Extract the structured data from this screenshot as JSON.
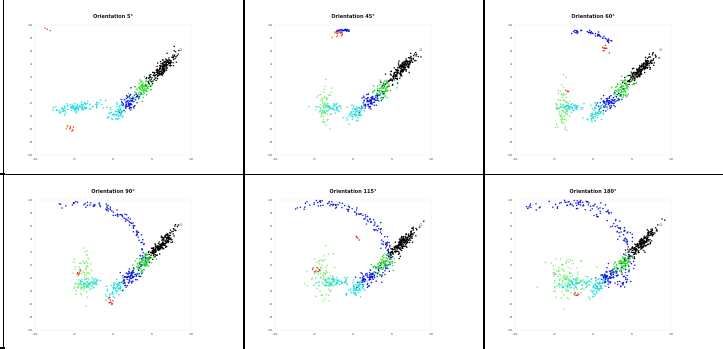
{
  "figure": {
    "background": "#ffffff",
    "separator_color": "#000000"
  },
  "colors": {
    "black": "#000000",
    "green": "#22dd22",
    "blue": "#0a14e6",
    "cyan": "#22dddd",
    "red": "#ee2222",
    "orange": "#ee7722",
    "light_green": "#77ee66",
    "magenta": "#cc22cc",
    "outlier": "#555555"
  },
  "chart_data": [
    {
      "type": "scatter",
      "title": "Orientation 5°",
      "xlim": [
        -10,
        10
      ],
      "ylim": [
        -10,
        10
      ],
      "x_ticks": [
        "-10",
        "-5",
        "0",
        "5",
        "10"
      ],
      "y_ticks": [
        "10",
        "8",
        "6",
        "4",
        "2",
        "0",
        "-2",
        "-4",
        "-6",
        "-8",
        "-10"
      ],
      "grid": false,
      "clusters": [
        {
          "color": "black",
          "cx": 6.2,
          "cy": 3.2,
          "sx": 1.4,
          "sy": 0.35,
          "angle": 52,
          "n": 200
        },
        {
          "color": "green",
          "cx": 3.8,
          "cy": 0.2,
          "sx": 0.9,
          "sy": 0.5,
          "angle": 52,
          "n": 80
        },
        {
          "color": "blue",
          "cx": 2.1,
          "cy": -1.8,
          "sx": 0.9,
          "sy": 0.5,
          "angle": 52,
          "n": 80
        },
        {
          "color": "cyan",
          "cx": 0.5,
          "cy": -3.5,
          "sx": 0.8,
          "sy": 0.45,
          "angle": 52,
          "n": 60
        },
        {
          "color": "cyan",
          "cx": -4.6,
          "cy": -2.6,
          "sx": 1.5,
          "sy": 0.35,
          "angle": 8,
          "n": 110
        },
        {
          "color": "orange",
          "cx": -5.6,
          "cy": -5.8,
          "sx": 0.25,
          "sy": 0.25,
          "angle": 0,
          "n": 6
        },
        {
          "color": "red",
          "cx": -5.4,
          "cy": -6.1,
          "sx": 0.2,
          "sy": 0.2,
          "angle": 0,
          "n": 4
        },
        {
          "color": "magenta",
          "cx": -8.6,
          "cy": 9.4,
          "sx": 0.3,
          "sy": 0.2,
          "angle": 0,
          "n": 3
        }
      ],
      "arc": null,
      "outliers": [
        [
          8.7,
          6.2
        ]
      ]
    },
    {
      "type": "scatter",
      "title": "Orientation 45°",
      "xlim": [
        -10,
        10
      ],
      "ylim": [
        -10,
        10
      ],
      "x_ticks": [
        "-10",
        "-5",
        "0",
        "5",
        "10"
      ],
      "y_ticks": [
        "10",
        "8",
        "6",
        "4",
        "2",
        "0",
        "-2",
        "-4",
        "-6",
        "-8",
        "-10"
      ],
      "grid": false,
      "clusters": [
        {
          "color": "black",
          "cx": 6.2,
          "cy": 3.2,
          "sx": 1.4,
          "sy": 0.35,
          "angle": 52,
          "n": 200
        },
        {
          "color": "green",
          "cx": 3.8,
          "cy": 0.2,
          "sx": 0.9,
          "sy": 0.5,
          "angle": 52,
          "n": 80
        },
        {
          "color": "blue",
          "cx": 2.1,
          "cy": -1.8,
          "sx": 0.9,
          "sy": 0.5,
          "angle": 52,
          "n": 80
        },
        {
          "color": "cyan",
          "cx": 0.5,
          "cy": -3.5,
          "sx": 0.8,
          "sy": 0.45,
          "angle": 52,
          "n": 60
        },
        {
          "color": "cyan",
          "cx": -2.9,
          "cy": -2.7,
          "sx": 0.8,
          "sy": 0.35,
          "angle": 8,
          "n": 60
        },
        {
          "color": "light_green",
          "cx": -3.6,
          "cy": -2.6,
          "sx": 0.5,
          "sy": 1.6,
          "angle": 0,
          "n": 60
        },
        {
          "color": "red",
          "cx": -1.9,
          "cy": 8.9,
          "sx": 0.3,
          "sy": 0.3,
          "angle": 0,
          "n": 8
        },
        {
          "color": "orange",
          "cx": -2.0,
          "cy": 8.6,
          "sx": 0.3,
          "sy": 0.3,
          "angle": 0,
          "n": 6
        }
      ],
      "arc": {
        "color": "blue",
        "xc": -1.0,
        "yc": 6.0,
        "r": 3.2,
        "a0": 110,
        "a1": 80,
        "n": 30,
        "jitter": 0.12
      },
      "outliers": [
        [
          8.7,
          6.2
        ]
      ]
    },
    {
      "type": "scatter",
      "title": "Orientation 60°",
      "xlim": [
        -10,
        10
      ],
      "ylim": [
        -10,
        10
      ],
      "x_ticks": [
        "-10",
        "-5",
        "0",
        "5",
        "10"
      ],
      "y_ticks": [
        "10",
        "8",
        "6",
        "4",
        "2",
        "0",
        "-2",
        "-4",
        "-6",
        "-8",
        "-10"
      ],
      "grid": false,
      "clusters": [
        {
          "color": "black",
          "cx": 6.2,
          "cy": 3.2,
          "sx": 1.4,
          "sy": 0.35,
          "angle": 52,
          "n": 200
        },
        {
          "color": "green",
          "cx": 3.8,
          "cy": 0.2,
          "sx": 0.9,
          "sy": 0.5,
          "angle": 52,
          "n": 80
        },
        {
          "color": "blue",
          "cx": 2.1,
          "cy": -1.8,
          "sx": 0.9,
          "sy": 0.5,
          "angle": 52,
          "n": 80
        },
        {
          "color": "cyan",
          "cx": 0.5,
          "cy": -3.5,
          "sx": 0.8,
          "sy": 0.45,
          "angle": 52,
          "n": 60
        },
        {
          "color": "cyan",
          "cx": -3.0,
          "cy": -2.7,
          "sx": 0.8,
          "sy": 0.35,
          "angle": 8,
          "n": 60
        },
        {
          "color": "light_green",
          "cx": -3.8,
          "cy": -2.4,
          "sx": 0.5,
          "sy": 1.8,
          "angle": 0,
          "n": 70
        },
        {
          "color": "red",
          "cx": 1.6,
          "cy": 6.3,
          "sx": 0.3,
          "sy": 0.3,
          "angle": 0,
          "n": 10
        },
        {
          "color": "red",
          "cx": -3.2,
          "cy": -0.3,
          "sx": 0.25,
          "sy": 0.25,
          "angle": 0,
          "n": 4
        }
      ],
      "arc": {
        "color": "blue",
        "xc": -1.5,
        "yc": 4.0,
        "r": 5.0,
        "a0": 105,
        "a1": 40,
        "n": 50,
        "jitter": 0.15
      },
      "outliers": [
        [
          8.7,
          6.2
        ]
      ]
    },
    {
      "type": "scatter",
      "title": "Orientation 90°",
      "xlim": [
        -10,
        10
      ],
      "ylim": [
        -10,
        10
      ],
      "x_ticks": [
        "-10",
        "-5",
        "0",
        "5",
        "10"
      ],
      "y_ticks": [
        "10",
        "8",
        "6",
        "4",
        "2",
        "0",
        "-2",
        "-4",
        "-6",
        "-8",
        "-10"
      ],
      "grid": false,
      "clusters": [
        {
          "color": "black",
          "cx": 6.2,
          "cy": 3.2,
          "sx": 1.4,
          "sy": 0.35,
          "angle": 52,
          "n": 200
        },
        {
          "color": "green",
          "cx": 3.8,
          "cy": 0.2,
          "sx": 0.9,
          "sy": 0.5,
          "angle": 52,
          "n": 80
        },
        {
          "color": "blue",
          "cx": 2.1,
          "cy": -1.8,
          "sx": 0.9,
          "sy": 0.5,
          "angle": 52,
          "n": 80
        },
        {
          "color": "cyan",
          "cx": 0.5,
          "cy": -3.5,
          "sx": 0.8,
          "sy": 0.45,
          "angle": 52,
          "n": 60
        },
        {
          "color": "cyan",
          "cx": -3.0,
          "cy": -2.8,
          "sx": 0.8,
          "sy": 0.35,
          "angle": 8,
          "n": 60
        },
        {
          "color": "light_green",
          "cx": -3.8,
          "cy": -2.0,
          "sx": 0.6,
          "sy": 1.8,
          "angle": 0,
          "n": 80
        },
        {
          "color": "red",
          "cx": -0.3,
          "cy": -5.6,
          "sx": 0.25,
          "sy": 0.35,
          "angle": 0,
          "n": 10
        },
        {
          "color": "red",
          "cx": -4.5,
          "cy": -1.3,
          "sx": 0.25,
          "sy": 0.25,
          "angle": 0,
          "n": 5
        }
      ],
      "arc": {
        "color": "blue",
        "xc": -4.0,
        "yc": 1.5,
        "r": 8.0,
        "a0": 110,
        "a1": -25,
        "n": 120,
        "jitter": 0.25
      },
      "outliers": [
        [
          8.7,
          6.2
        ]
      ]
    },
    {
      "type": "scatter",
      "title": "Orientation 115°",
      "xlim": [
        -10,
        10
      ],
      "ylim": [
        -10,
        10
      ],
      "x_ticks": [
        "-10",
        "-5",
        "0",
        "5",
        "10"
      ],
      "y_ticks": [
        "10",
        "8",
        "6",
        "4",
        "2",
        "0",
        "-2",
        "-4",
        "-6",
        "-8",
        "-10"
      ],
      "grid": false,
      "clusters": [
        {
          "color": "black",
          "cx": 6.2,
          "cy": 3.2,
          "sx": 1.4,
          "sy": 0.35,
          "angle": 52,
          "n": 200
        },
        {
          "color": "green",
          "cx": 3.8,
          "cy": 0.2,
          "sx": 0.9,
          "sy": 0.5,
          "angle": 52,
          "n": 80
        },
        {
          "color": "blue",
          "cx": 2.1,
          "cy": -1.8,
          "sx": 0.9,
          "sy": 0.5,
          "angle": 52,
          "n": 80
        },
        {
          "color": "cyan",
          "cx": 0.5,
          "cy": -3.5,
          "sx": 0.8,
          "sy": 0.45,
          "angle": 52,
          "n": 60
        },
        {
          "color": "cyan",
          "cx": -2.5,
          "cy": -2.6,
          "sx": 1.0,
          "sy": 0.35,
          "angle": 8,
          "n": 70
        },
        {
          "color": "light_green",
          "cx": -3.8,
          "cy": -1.8,
          "sx": 0.7,
          "sy": 1.6,
          "angle": 0,
          "n": 80
        },
        {
          "color": "red",
          "cx": -4.6,
          "cy": -0.8,
          "sx": 0.35,
          "sy": 0.25,
          "angle": 0,
          "n": 8
        },
        {
          "color": "red",
          "cx": 0.8,
          "cy": 4.2,
          "sx": 0.25,
          "sy": 0.25,
          "angle": 0,
          "n": 5
        }
      ],
      "arc": {
        "color": "blue",
        "xc": -4.0,
        "yc": 1.0,
        "r": 8.5,
        "a0": 115,
        "a1": -30,
        "n": 130,
        "jitter": 0.3
      },
      "outliers": [
        [
          8.7,
          6.2
        ]
      ]
    },
    {
      "type": "scatter",
      "title": "Orientation 180°",
      "xlim": [
        -10,
        10
      ],
      "ylim": [
        -10,
        10
      ],
      "x_ticks": [
        "-10",
        "-5",
        "0",
        "5",
        "10"
      ],
      "y_ticks": [
        "10",
        "8",
        "6",
        "4",
        "2",
        "0",
        "-2",
        "-4",
        "-6",
        "-8",
        "-10"
      ],
      "grid": false,
      "clusters": [
        {
          "color": "black",
          "cx": 6.2,
          "cy": 3.2,
          "sx": 1.4,
          "sy": 0.35,
          "angle": 52,
          "n": 200
        },
        {
          "color": "green",
          "cx": 3.8,
          "cy": 0.2,
          "sx": 0.9,
          "sy": 0.5,
          "angle": 52,
          "n": 80
        },
        {
          "color": "blue",
          "cx": 2.1,
          "cy": -1.8,
          "sx": 0.9,
          "sy": 0.5,
          "angle": 52,
          "n": 80
        },
        {
          "color": "cyan",
          "cx": 0.5,
          "cy": -3.5,
          "sx": 0.8,
          "sy": 0.45,
          "angle": 52,
          "n": 60
        },
        {
          "color": "cyan",
          "cx": -2.5,
          "cy": -2.9,
          "sx": 1.2,
          "sy": 0.4,
          "angle": 8,
          "n": 80
        },
        {
          "color": "light_green",
          "cx": -3.3,
          "cy": -2.2,
          "sx": 1.3,
          "sy": 1.6,
          "angle": 0,
          "n": 110
        },
        {
          "color": "red",
          "cx": -2.2,
          "cy": -4.6,
          "sx": 0.3,
          "sy": 0.25,
          "angle": 0,
          "n": 6
        }
      ],
      "arc": {
        "color": "blue",
        "xc": -4.0,
        "yc": 1.0,
        "r": 8.8,
        "a0": 120,
        "a1": -30,
        "n": 170,
        "jitter": 0.45
      },
      "outliers": [
        [
          8.7,
          6.2
        ],
        [
          -5.0,
          -1.3
        ]
      ]
    }
  ]
}
